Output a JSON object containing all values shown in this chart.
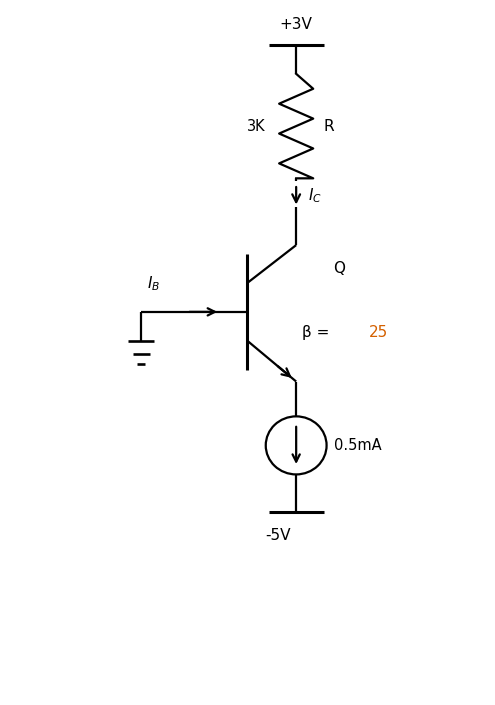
{
  "bg_color": "#ffffff",
  "line_color": "#000000",
  "vcc_label": "+3V",
  "resistor_label": "3K",
  "R_label": "R",
  "Q_label": "Q",
  "beta_label": "β =",
  "beta_value": "25",
  "beta_value_color": "#d46000",
  "current_source_label": "0.5mA",
  "vee_label": "-5V",
  "fig_width": 4.95,
  "fig_height": 7.05,
  "dpi": 100,
  "xlim": [
    0,
    8
  ],
  "ylim": [
    0,
    12
  ]
}
